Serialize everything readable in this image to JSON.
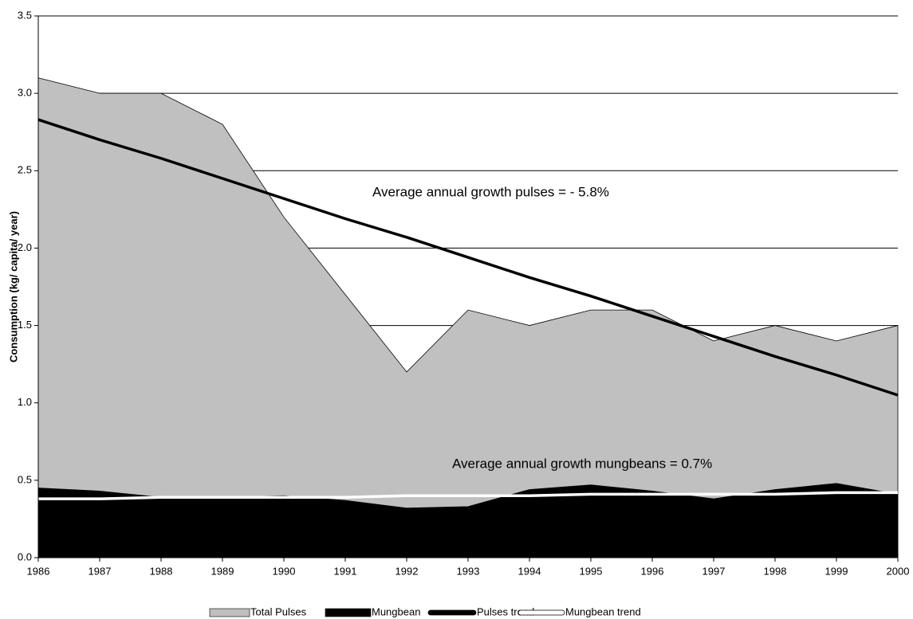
{
  "chart_data": {
    "type": "area",
    "ylabel": "Consumption (kg/ capita/ year)",
    "categories": [
      "1986",
      "1987",
      "1988",
      "1989",
      "1990",
      "1991",
      "1992",
      "1993",
      "1994",
      "1995",
      "1996",
      "1997",
      "1998",
      "1999",
      "2000"
    ],
    "series": [
      {
        "name": "Total Pulses",
        "type": "area",
        "color": "#c0c0c0",
        "values": [
          3.1,
          3.0,
          3.0,
          2.8,
          2.2,
          1.7,
          1.2,
          1.6,
          1.5,
          1.6,
          1.6,
          1.4,
          1.5,
          1.4,
          1.5
        ]
      },
      {
        "name": "Mungbean",
        "type": "area",
        "color": "#000000",
        "values": [
          0.45,
          0.43,
          0.39,
          0.39,
          0.4,
          0.37,
          0.32,
          0.33,
          0.44,
          0.47,
          0.43,
          0.38,
          0.44,
          0.48,
          0.41
        ]
      },
      {
        "name": "Pulses trend",
        "type": "line",
        "color": "#000000",
        "values": [
          2.83,
          2.7,
          2.58,
          2.45,
          2.32,
          2.19,
          2.07,
          1.94,
          1.81,
          1.69,
          1.56,
          1.43,
          1.3,
          1.18,
          1.05
        ]
      },
      {
        "name": "Mungbean trend",
        "type": "line",
        "color": "#ffffff",
        "values": [
          0.38,
          0.38,
          0.39,
          0.39,
          0.39,
          0.39,
          0.4,
          0.4,
          0.4,
          0.41,
          0.41,
          0.41,
          0.41,
          0.42,
          0.42
        ]
      }
    ],
    "annotations": [
      "Average annual growth pulses = - 5.8%",
      "Average annual growth mungbeans = 0.7%"
    ],
    "ylim": [
      0,
      3.5
    ],
    "yticks": [
      {
        "value": 0,
        "label": "0.0"
      },
      0.5,
      {
        "value": 1,
        "label": "1.0"
      },
      1.5,
      {
        "value": 2,
        "label": "2.0"
      },
      2.5,
      {
        "value": 3,
        "label": "3.0"
      },
      3.5
    ],
    "grid": true
  }
}
